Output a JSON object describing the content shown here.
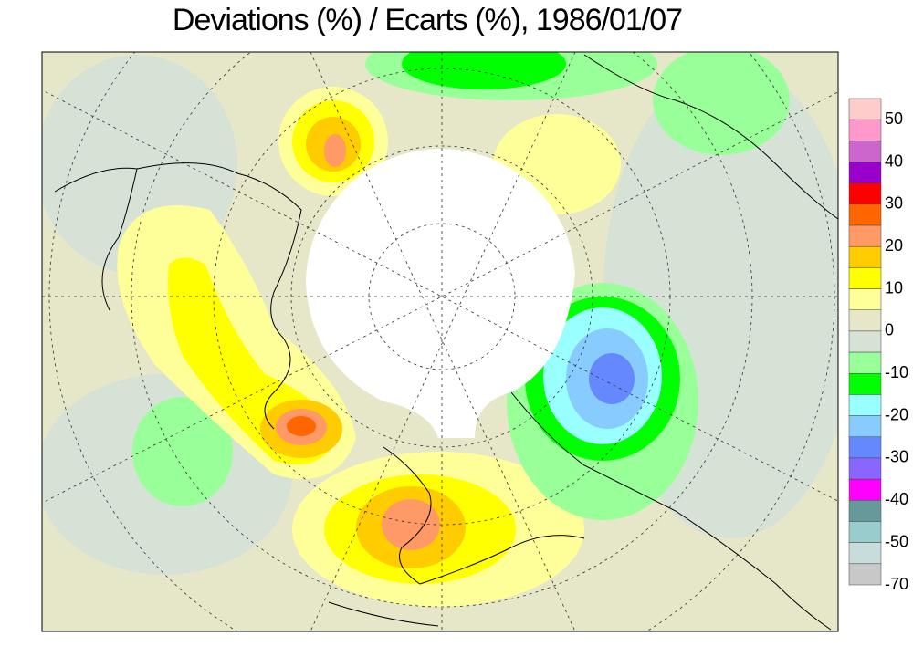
{
  "title": "Deviations (%) / Ecarts (%), 1986/01/07",
  "colorbar": {
    "colors": [
      "#ffcccc",
      "#ff99cc",
      "#cc66cc",
      "#9900cc",
      "#ff0000",
      "#ff6600",
      "#ff9966",
      "#ffcc00",
      "#ffff00",
      "#ffff99",
      "#e6e6c8",
      "#d6e2d6",
      "#99ff99",
      "#00ff00",
      "#99ffff",
      "#88ccff",
      "#6688ff",
      "#8866ff",
      "#ff00ff",
      "#669999",
      "#99cccc",
      "#c8dcdc",
      "#c8c8c8"
    ],
    "ticks": [
      50,
      40,
      30,
      20,
      10,
      0,
      -10,
      -20,
      -30,
      -40,
      -50,
      -70
    ]
  }
}
